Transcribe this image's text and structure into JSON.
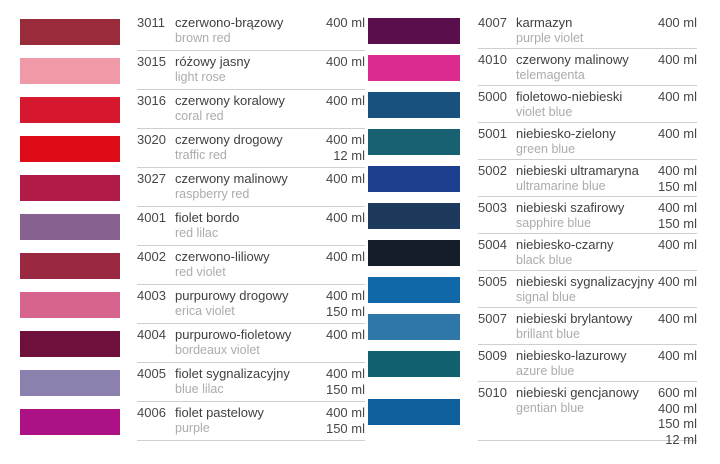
{
  "table": {
    "separator_color": "#cfcfcf",
    "text_color": "#404040",
    "secondary_text_color": "#acacac",
    "columns": [
      {
        "name": "left",
        "rows": [
          {
            "code": "3011",
            "name_pl": "czerwono-brązowy",
            "name_en": "brown red",
            "volumes": [
              "400 ml"
            ],
            "swatch": "#9a2b3b"
          },
          {
            "code": "3015",
            "name_pl": "różowy jasny",
            "name_en": "light rose",
            "volumes": [
              "400 ml"
            ],
            "swatch": "#f09aa7"
          },
          {
            "code": "3016",
            "name_pl": "czerwony koralowy",
            "name_en": "coral red",
            "volumes": [
              "400 ml"
            ],
            "swatch": "#d5182e"
          },
          {
            "code": "3020",
            "name_pl": "czerwony drogowy",
            "name_en": "traffic red",
            "volumes": [
              "400 ml",
              "12 ml"
            ],
            "swatch": "#de0c17"
          },
          {
            "code": "3027",
            "name_pl": "czerwony malinowy",
            "name_en": "raspberry red",
            "volumes": [
              "400 ml"
            ],
            "swatch": "#b01b48"
          },
          {
            "code": "4001",
            "name_pl": "fiolet bordo",
            "name_en": "red lilac",
            "volumes": [
              "400 ml"
            ],
            "swatch": "#876290"
          },
          {
            "code": "4002",
            "name_pl": "czerwono-liliowy",
            "name_en": "red violet",
            "volumes": [
              "400 ml"
            ],
            "swatch": "#9b2841"
          },
          {
            "code": "4003",
            "name_pl": "purpurowy drogowy",
            "name_en": "erica violet",
            "volumes": [
              "400 ml",
              "150 ml"
            ],
            "swatch": "#d7648f"
          },
          {
            "code": "4004",
            "name_pl": "purpurowo-fioletowy",
            "name_en": "bordeaux violet",
            "volumes": [
              "400 ml"
            ],
            "swatch": "#6e0f3c"
          },
          {
            "code": "4005",
            "name_pl": "fiolet sygnalizacyjny",
            "name_en": "blue lilac",
            "volumes": [
              "400 ml",
              "150 ml"
            ],
            "swatch": "#8c80ae"
          },
          {
            "code": "4006",
            "name_pl": "fiolet pastelowy",
            "name_en": "purple",
            "volumes": [
              "400 ml",
              "150 ml"
            ],
            "swatch": "#ac1186"
          }
        ]
      },
      {
        "name": "right",
        "rows": [
          {
            "code": "4007",
            "name_pl": "karmazyn",
            "name_en": "purple violet",
            "volumes": [
              "400 ml"
            ],
            "swatch": "#5a0e4c"
          },
          {
            "code": "4010",
            "name_pl": "czerwony malinowy",
            "name_en": "telemagenta",
            "volumes": [
              "400 ml"
            ],
            "swatch": "#db2b90"
          },
          {
            "code": "5000",
            "name_pl": "fioletowo-niebieski",
            "name_en": "violet blue",
            "volumes": [
              "400 ml"
            ],
            "swatch": "#18517e"
          },
          {
            "code": "5001",
            "name_pl": "niebiesko-zielony",
            "name_en": "green blue",
            "volumes": [
              "400 ml"
            ],
            "swatch": "#186173"
          },
          {
            "code": "5002",
            "name_pl": "niebieski ultramaryna",
            "name_en": "ultramarine blue",
            "volumes": [
              "400 ml",
              "150 ml"
            ],
            "swatch": "#1e3e8e"
          },
          {
            "code": "5003",
            "name_pl": "niebieski szafirowy",
            "name_en": "sapphire blue",
            "volumes": [
              "400 ml",
              "150 ml"
            ],
            "swatch": "#1d3a5d"
          },
          {
            "code": "5004",
            "name_pl": "niebiesko-czarny",
            "name_en": "black blue",
            "volumes": [
              "400 ml"
            ],
            "swatch": "#141e2b"
          },
          {
            "code": "5005",
            "name_pl": "niebieski sygnalizacyjny",
            "name_en": "signal blue",
            "volumes": [
              "400 ml"
            ],
            "swatch": "#1168a9"
          },
          {
            "code": "5007",
            "name_pl": "niebieski brylantowy",
            "name_en": "brillant blue",
            "volumes": [
              "400 ml"
            ],
            "swatch": "#2f77a8"
          },
          {
            "code": "5009",
            "name_pl": "niebiesko-lazurowy",
            "name_en": "azure blue",
            "volumes": [
              "400 ml"
            ],
            "swatch": "#11616f"
          },
          {
            "code": "5010",
            "name_pl": "niebieski gencjanowy",
            "name_en": "gentian blue",
            "volumes": [
              "600 ml",
              "400 ml",
              "150 ml",
              "12 ml"
            ],
            "swatch": "#0f5f9d"
          }
        ]
      }
    ]
  }
}
